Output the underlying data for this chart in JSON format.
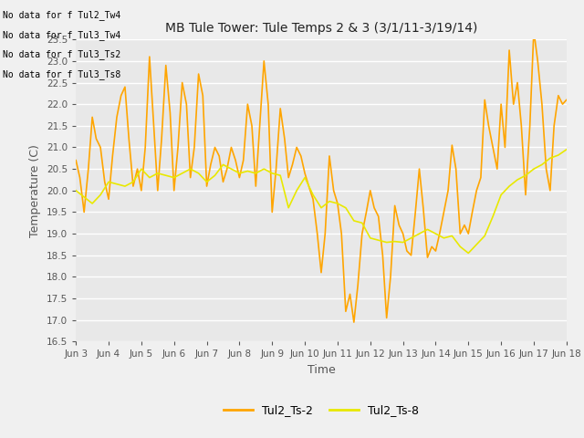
{
  "title": "MB Tule Tower: Tule Temps 2 & 3 (3/1/11-3/19/14)",
  "xlabel": "Time",
  "ylabel": "Temperature (C)",
  "ylim": [
    16.5,
    23.5
  ],
  "fig_facecolor": "#f0f0f0",
  "ax_facecolor": "#e8e8e8",
  "grid_color": "#ffffff",
  "line1_color": "#FFA500",
  "line2_color": "#E8E800",
  "line1_label": "Tul2_Ts-2",
  "line2_label": "Tul2_Ts-8",
  "no_data_texts": [
    "No data for f Tul2_Tw4",
    "No data for f Tul3_Tw4",
    "No data for f Tul3_Ts2",
    "No data for f Tul3_Ts8"
  ],
  "tick_labels": [
    "Jun 3",
    "Jun 4",
    "Jun 5",
    "Jun 6",
    "Jun 7",
    "Jun 8",
    "Jun 9",
    "Jun 10",
    "Jun 11",
    "Jun 12",
    "Jun 13",
    "Jun 14",
    "Jun 15",
    "Jun 16",
    "Jun 17",
    "Jun 18"
  ],
  "ts2_x": [
    0.0,
    0.12,
    0.25,
    0.38,
    0.5,
    0.62,
    0.75,
    0.88,
    1.0,
    1.12,
    1.25,
    1.38,
    1.5,
    1.62,
    1.75,
    1.88,
    2.0,
    2.12,
    2.25,
    2.38,
    2.5,
    2.62,
    2.75,
    2.88,
    3.0,
    3.12,
    3.25,
    3.38,
    3.5,
    3.62,
    3.75,
    3.88,
    4.0,
    4.12,
    4.25,
    4.38,
    4.5,
    4.62,
    4.75,
    4.88,
    5.0,
    5.12,
    5.25,
    5.38,
    5.5,
    5.62,
    5.75,
    5.88,
    6.0,
    6.12,
    6.25,
    6.38,
    6.5,
    6.62,
    6.75,
    6.88,
    7.0,
    7.12,
    7.25,
    7.38,
    7.5,
    7.62,
    7.75,
    7.88,
    8.0,
    8.12,
    8.25,
    8.38,
    8.5,
    8.62,
    8.75,
    8.88,
    9.0,
    9.12,
    9.25,
    9.38,
    9.5,
    9.62,
    9.75,
    9.88,
    10.0,
    10.12,
    10.25,
    10.38,
    10.5,
    10.62,
    10.75,
    10.88,
    11.0,
    11.12,
    11.25,
    11.38,
    11.5,
    11.62,
    11.75,
    11.88,
    12.0,
    12.12,
    12.25,
    12.38,
    12.5,
    12.62,
    12.75,
    12.88,
    13.0,
    13.12,
    13.25,
    13.38,
    13.5,
    13.62,
    13.75,
    13.88,
    14.0,
    14.12,
    14.25,
    14.38,
    14.5,
    14.62,
    14.75,
    14.88,
    15.0
  ],
  "ts2_y": [
    20.7,
    20.3,
    19.5,
    20.5,
    21.7,
    21.2,
    21.0,
    20.2,
    19.8,
    20.8,
    21.7,
    22.2,
    22.4,
    21.2,
    20.1,
    20.5,
    20.0,
    21.0,
    23.1,
    21.5,
    20.0,
    21.2,
    22.9,
    21.8,
    20.0,
    21.0,
    22.5,
    22.0,
    20.3,
    21.0,
    22.7,
    22.2,
    20.1,
    20.6,
    21.0,
    20.8,
    20.2,
    20.5,
    21.0,
    20.7,
    20.3,
    20.7,
    22.0,
    21.5,
    20.1,
    21.5,
    23.0,
    22.0,
    19.5,
    20.5,
    21.9,
    21.2,
    20.3,
    20.6,
    21.0,
    20.8,
    20.4,
    20.1,
    19.8,
    19.0,
    18.1,
    19.0,
    20.8,
    20.0,
    19.7,
    19.0,
    17.2,
    17.6,
    16.95,
    17.8,
    19.0,
    19.5,
    20.0,
    19.6,
    19.4,
    18.5,
    17.05,
    18.0,
    19.65,
    19.2,
    19.0,
    18.6,
    18.5,
    19.5,
    20.5,
    19.6,
    18.45,
    18.7,
    18.6,
    19.0,
    19.5,
    20.0,
    21.05,
    20.5,
    19.0,
    19.2,
    19.0,
    19.5,
    20.0,
    20.3,
    22.1,
    21.5,
    21.0,
    20.5,
    22.0,
    21.0,
    23.25,
    22.0,
    22.5,
    21.5,
    19.9,
    21.5,
    23.7,
    23.0,
    22.0,
    20.5,
    20.0,
    21.5,
    22.2,
    22.0,
    22.1
  ],
  "ts8_x": [
    0.0,
    0.25,
    0.5,
    0.75,
    1.0,
    1.25,
    1.5,
    1.75,
    2.0,
    2.25,
    2.5,
    2.75,
    3.0,
    3.25,
    3.5,
    3.75,
    4.0,
    4.25,
    4.5,
    4.75,
    5.0,
    5.25,
    5.5,
    5.75,
    6.0,
    6.25,
    6.5,
    6.75,
    7.0,
    7.25,
    7.5,
    7.75,
    8.0,
    8.25,
    8.5,
    8.75,
    9.0,
    9.25,
    9.5,
    9.75,
    10.0,
    10.25,
    10.5,
    10.75,
    11.0,
    11.25,
    11.5,
    11.75,
    12.0,
    12.25,
    12.5,
    12.75,
    13.0,
    13.25,
    13.5,
    13.75,
    14.0,
    14.25,
    14.5,
    14.75,
    15.0
  ],
  "ts8_y": [
    20.0,
    19.85,
    19.7,
    19.9,
    20.2,
    20.15,
    20.1,
    20.2,
    20.5,
    20.3,
    20.4,
    20.35,
    20.3,
    20.4,
    20.5,
    20.4,
    20.2,
    20.35,
    20.6,
    20.5,
    20.4,
    20.45,
    20.4,
    20.5,
    20.4,
    20.35,
    19.6,
    20.0,
    20.3,
    19.9,
    19.6,
    19.75,
    19.7,
    19.6,
    19.3,
    19.25,
    18.9,
    18.85,
    18.8,
    18.82,
    18.8,
    18.9,
    19.0,
    19.1,
    19.0,
    18.9,
    18.95,
    18.7,
    18.55,
    18.75,
    18.95,
    19.4,
    19.9,
    20.1,
    20.25,
    20.35,
    20.5,
    20.6,
    20.75,
    20.82,
    20.95
  ]
}
